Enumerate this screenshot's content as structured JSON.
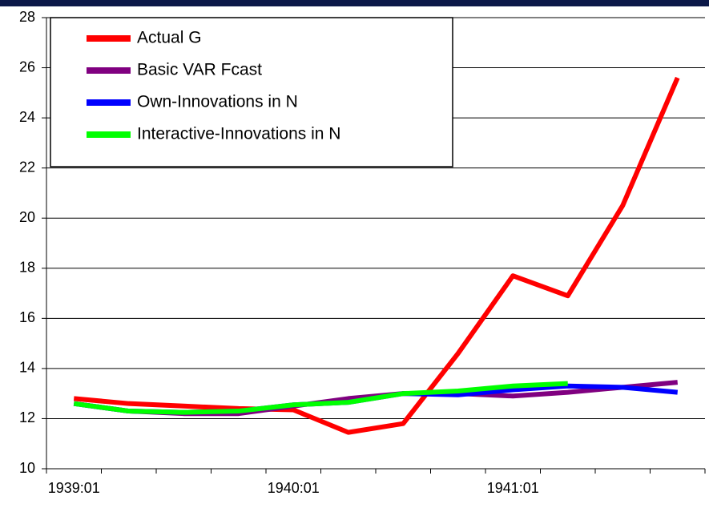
{
  "chart_data": {
    "type": "line",
    "categories": [
      "1939:01",
      null,
      null,
      null,
      "1940:01",
      null,
      null,
      null,
      "1941:01",
      null,
      null,
      null
    ],
    "series": [
      {
        "name": "Actual G",
        "color": "#ff0000",
        "values": [
          12.8,
          12.6,
          12.5,
          12.4,
          12.35,
          11.45,
          11.8,
          14.6,
          17.7,
          16.9,
          20.5,
          25.6
        ]
      },
      {
        "name": "Basic VAR Fcast",
        "color": "#800080",
        "values": [
          12.6,
          12.3,
          12.2,
          12.2,
          12.5,
          12.8,
          13.0,
          13.0,
          12.9,
          13.05,
          13.25,
          13.45
        ]
      },
      {
        "name": "Own-Innovations in N",
        "color": "#0000ff",
        "values": [
          12.6,
          12.3,
          12.25,
          12.3,
          12.55,
          12.65,
          13.0,
          12.95,
          13.15,
          13.3,
          13.25,
          13.05
        ]
      },
      {
        "name": "Interactive-Innovations in N",
        "color": "#00ff00",
        "values": [
          12.6,
          12.3,
          12.25,
          12.3,
          12.55,
          12.65,
          13.0,
          13.1,
          13.3,
          13.4,
          null,
          null
        ]
      }
    ],
    "ylim": [
      10,
      28
    ],
    "yticks": [
      10,
      12,
      14,
      16,
      18,
      20,
      22,
      24,
      26,
      28
    ],
    "grid": true,
    "legend": "top-left"
  }
}
